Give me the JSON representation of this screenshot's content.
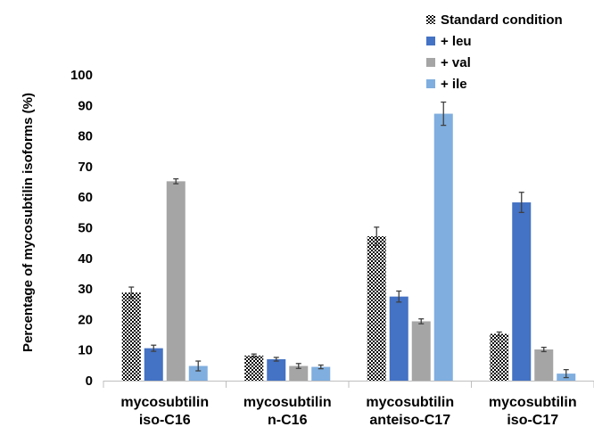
{
  "chart_data": {
    "type": "bar",
    "title": "",
    "xlabel": "",
    "ylabel": "Percentage of mycosubtilin isoforms (%)",
    "ylim": [
      0,
      100
    ],
    "yticks": [
      0,
      10,
      20,
      30,
      40,
      50,
      60,
      70,
      80,
      90,
      100
    ],
    "grid": false,
    "legend_position": "top-right",
    "error_bars": true,
    "categories": [
      [
        "mycosubtilin",
        "iso-C16"
      ],
      [
        "mycosubtilin",
        "n-C16"
      ],
      [
        "mycosubtilin",
        "anteiso-C17"
      ],
      [
        "mycosubtilin",
        "iso-C17"
      ]
    ],
    "series": [
      {
        "name": "Standard condition",
        "color": "#000000",
        "pattern": "checker",
        "values": [
          28.8,
          8.2,
          47.2,
          15.3
        ],
        "errors": [
          1.8,
          0.5,
          3.0,
          0.6
        ]
      },
      {
        "name": "+ leu",
        "color": "#4472C4",
        "values": [
          10.6,
          7.0,
          27.5,
          58.3
        ],
        "errors": [
          1.0,
          0.6,
          1.8,
          3.3
        ]
      },
      {
        "name": "+ val",
        "color": "#A5A5A5",
        "values": [
          65.2,
          4.8,
          19.4,
          10.2
        ],
        "errors": [
          0.8,
          0.8,
          0.8,
          0.7
        ]
      },
      {
        "name": "+ ile",
        "color": "#7FAEDF",
        "values": [
          4.8,
          4.5,
          87.3,
          2.3
        ],
        "errors": [
          1.6,
          0.6,
          3.8,
          1.3
        ]
      }
    ]
  }
}
